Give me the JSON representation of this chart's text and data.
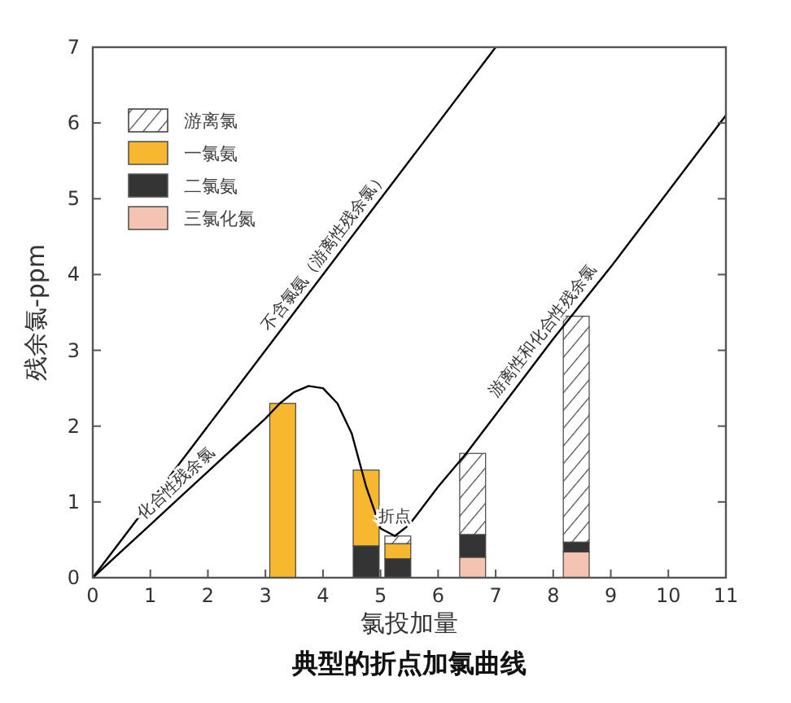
{
  "chart_data": {
    "type": "bar",
    "stacked": true,
    "title": "典型的折点加氯曲线",
    "xlabel": "氯投加量",
    "ylabel": "残余氯-ppm",
    "x": [
      3.3,
      4.75,
      5.3,
      6.6,
      8.4
    ],
    "series": [
      {
        "name": "三氯化氮",
        "color": "#f5c4b0",
        "values": [
          null,
          null,
          null,
          0.27,
          0.34
        ]
      },
      {
        "name": "二氯氨",
        "color": "#333333",
        "values": [
          null,
          0.42,
          0.25,
          0.3,
          0.13
        ]
      },
      {
        "name": "一氯氨",
        "color": "#f5b82e",
        "values": [
          2.3,
          1.0,
          0.2,
          null,
          null
        ]
      },
      {
        "name": "游离氯",
        "color": "#444444",
        "values": [
          null,
          null,
          0.1,
          1.07,
          2.98
        ]
      },
      {
        "type": "line",
        "color": "#000000",
        "x": [
          0,
          7
        ],
        "values": [
          0,
          7
        ]
      },
      {
        "type": "line",
        "color": "#000000",
        "x": [
          0,
          0.5,
          1,
          1.5,
          2,
          2.5,
          3,
          3.25,
          3.5,
          3.75,
          4,
          4.25,
          4.5,
          4.75,
          5,
          5.25,
          5.5,
          6,
          6.5,
          7,
          8,
          9,
          10,
          11
        ],
        "values": [
          0,
          0.35,
          0.7,
          1.05,
          1.4,
          1.75,
          2.1,
          2.3,
          2.45,
          2.53,
          2.5,
          2.3,
          1.9,
          1.2,
          0.65,
          0.55,
          0.7,
          1.2,
          1.65,
          2.15,
          3.15,
          4.1,
          5.1,
          6.1
        ]
      }
    ],
    "xlim": [
      0,
      11
    ],
    "ylim": [
      0,
      7
    ],
    "xticks": [
      0,
      1,
      2,
      3,
      4,
      5,
      6,
      7,
      8,
      9,
      10,
      11
    ],
    "yticks": [
      0,
      1,
      2,
      3,
      4,
      5,
      6,
      7
    ],
    "grid": false,
    "legend": "top left",
    "annotations": [
      {
        "text": "不含氯氨（游离性残余氯）",
        "x": 4.2,
        "y": 4.2
      },
      {
        "text": "化合性残余氯",
        "x": 1.6,
        "y": 1.12
      },
      {
        "text": "折点",
        "x": 5.25,
        "y": 0.55
      },
      {
        "text": "游离性和化合性残余氯",
        "x": 8.0,
        "y": 3.15
      }
    ]
  }
}
